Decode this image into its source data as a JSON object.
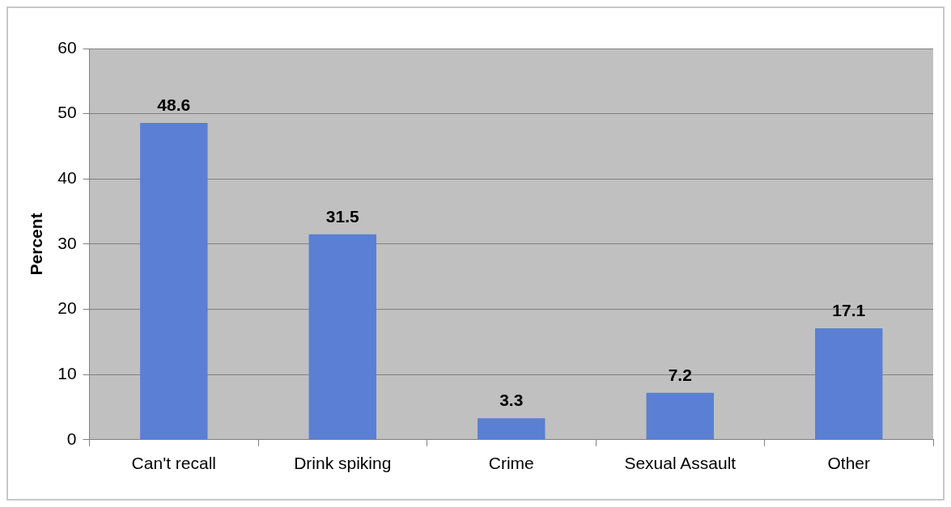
{
  "chart_data": {
    "type": "bar",
    "ylabel": "Percent",
    "categories": [
      "Can't recall",
      "Drink spiking",
      "Crime",
      "Sexual Assault",
      "Other"
    ],
    "values": [
      48.6,
      31.5,
      3.3,
      7.2,
      17.1
    ],
    "color": "#5a7fd4",
    "ylim": [
      0,
      60
    ],
    "yticks": [
      0,
      10,
      20,
      30,
      40,
      50,
      60
    ],
    "grid": "y",
    "data_labels": true,
    "legend": false
  }
}
